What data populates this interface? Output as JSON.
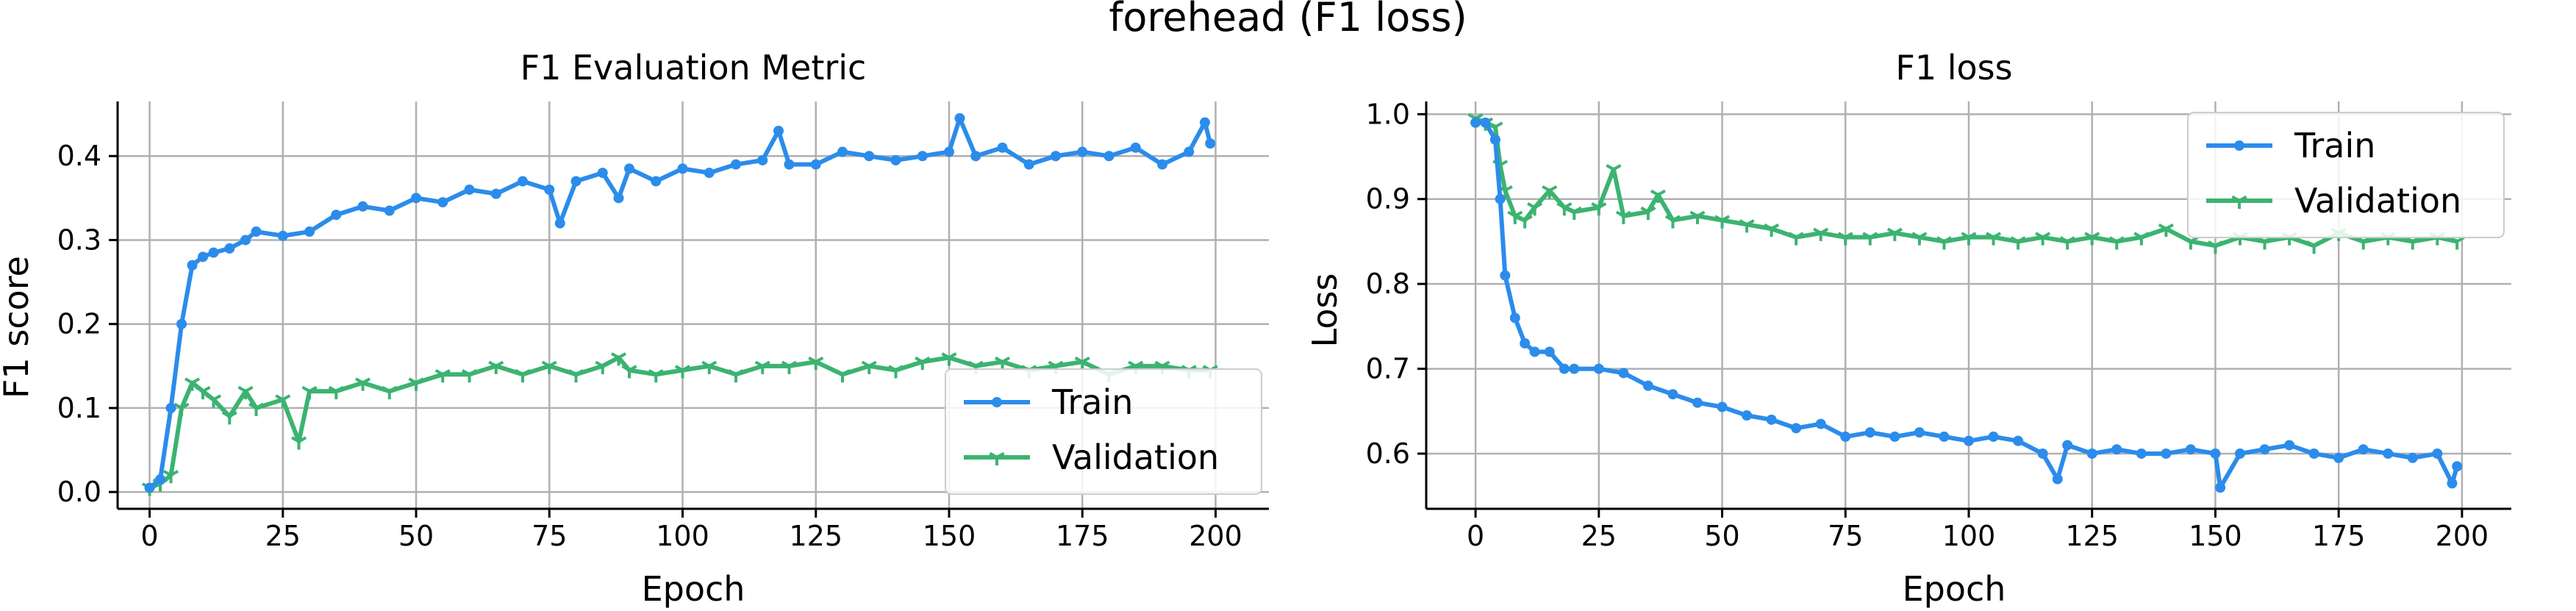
{
  "figure": {
    "suptitle": "forehead (F1 loss)"
  },
  "colors": {
    "train": "#2b8ceb",
    "validation": "#3cb371",
    "grid": "#b0b0b0"
  },
  "chart_data": [
    {
      "type": "line",
      "title": "F1 Evaluation Metric",
      "xlabel": "Epoch",
      "ylabel": "F1 score",
      "xlim": [
        -6,
        210
      ],
      "ylim": [
        -0.02,
        0.465
      ],
      "xticks": [
        0,
        25,
        50,
        75,
        100,
        125,
        150,
        175,
        200
      ],
      "yticks": [
        0.0,
        0.1,
        0.2,
        0.3,
        0.4
      ],
      "ytick_labels": [
        "0.0",
        "0.1",
        "0.2",
        "0.3",
        "0.4"
      ],
      "grid": true,
      "legend_position": "lower-right",
      "series": [
        {
          "name": "Train",
          "marker": "circle",
          "x": [
            0,
            2,
            4,
            6,
            8,
            10,
            12,
            15,
            18,
            20,
            25,
            30,
            35,
            40,
            45,
            50,
            55,
            60,
            65,
            70,
            75,
            77,
            80,
            85,
            88,
            90,
            95,
            100,
            105,
            110,
            115,
            118,
            120,
            125,
            130,
            135,
            140,
            145,
            150,
            152,
            155,
            160,
            165,
            170,
            175,
            180,
            185,
            190,
            195,
            198,
            199
          ],
          "y": [
            0.005,
            0.015,
            0.1,
            0.2,
            0.27,
            0.28,
            0.285,
            0.29,
            0.3,
            0.31,
            0.305,
            0.31,
            0.33,
            0.34,
            0.335,
            0.35,
            0.345,
            0.36,
            0.355,
            0.37,
            0.36,
            0.32,
            0.37,
            0.38,
            0.35,
            0.385,
            0.37,
            0.385,
            0.38,
            0.39,
            0.395,
            0.43,
            0.39,
            0.39,
            0.405,
            0.4,
            0.395,
            0.4,
            0.405,
            0.445,
            0.4,
            0.41,
            0.39,
            0.4,
            0.405,
            0.4,
            0.41,
            0.39,
            0.405,
            0.44,
            0.415
          ]
        },
        {
          "name": "Validation",
          "marker": "tri_down",
          "x": [
            0,
            2,
            4,
            6,
            8,
            10,
            12,
            15,
            18,
            20,
            25,
            28,
            30,
            35,
            40,
            45,
            50,
            55,
            60,
            65,
            70,
            75,
            80,
            85,
            88,
            90,
            95,
            100,
            105,
            110,
            115,
            120,
            125,
            130,
            135,
            140,
            145,
            150,
            155,
            160,
            165,
            170,
            175,
            180,
            185,
            190,
            195,
            199
          ],
          "y": [
            0.005,
            0.01,
            0.02,
            0.1,
            0.13,
            0.12,
            0.11,
            0.09,
            0.12,
            0.1,
            0.11,
            0.06,
            0.12,
            0.12,
            0.13,
            0.12,
            0.13,
            0.14,
            0.14,
            0.15,
            0.14,
            0.15,
            0.14,
            0.15,
            0.16,
            0.145,
            0.14,
            0.145,
            0.15,
            0.14,
            0.15,
            0.15,
            0.155,
            0.14,
            0.15,
            0.145,
            0.155,
            0.16,
            0.15,
            0.155,
            0.145,
            0.15,
            0.155,
            0.14,
            0.15,
            0.15,
            0.145,
            0.145
          ]
        }
      ]
    },
    {
      "type": "line",
      "title": "F1 loss",
      "xlabel": "Epoch",
      "ylabel": "Loss",
      "xlim": [
        -10,
        210
      ],
      "ylim": [
        0.535,
        1.015
      ],
      "xticks": [
        0,
        25,
        50,
        75,
        100,
        125,
        150,
        175,
        200
      ],
      "yticks": [
        0.6,
        0.7,
        0.8,
        0.9,
        1.0
      ],
      "ytick_labels": [
        "0.6",
        "0.7",
        "0.8",
        "0.9",
        "1.0"
      ],
      "grid": true,
      "legend_position": "upper-right",
      "series": [
        {
          "name": "Train",
          "marker": "circle",
          "x": [
            0,
            2,
            4,
            5,
            6,
            8,
            10,
            12,
            15,
            18,
            20,
            25,
            30,
            35,
            40,
            45,
            50,
            55,
            60,
            65,
            70,
            75,
            80,
            85,
            90,
            95,
            100,
            105,
            110,
            115,
            118,
            120,
            125,
            130,
            135,
            140,
            145,
            150,
            151,
            155,
            160,
            165,
            170,
            175,
            180,
            185,
            190,
            195,
            198,
            199
          ],
          "y": [
            0.99,
            0.99,
            0.97,
            0.9,
            0.81,
            0.76,
            0.73,
            0.72,
            0.72,
            0.7,
            0.7,
            0.7,
            0.695,
            0.68,
            0.67,
            0.66,
            0.655,
            0.645,
            0.64,
            0.63,
            0.635,
            0.62,
            0.625,
            0.62,
            0.625,
            0.62,
            0.615,
            0.62,
            0.615,
            0.6,
            0.57,
            0.61,
            0.6,
            0.605,
            0.6,
            0.6,
            0.605,
            0.6,
            0.56,
            0.6,
            0.605,
            0.61,
            0.6,
            0.595,
            0.605,
            0.6,
            0.595,
            0.6,
            0.565,
            0.585
          ]
        },
        {
          "name": "Validation",
          "marker": "tri_down",
          "x": [
            0,
            2,
            4,
            5,
            6,
            8,
            10,
            12,
            15,
            18,
            20,
            25,
            28,
            30,
            35,
            37,
            40,
            45,
            50,
            55,
            60,
            65,
            70,
            75,
            80,
            85,
            90,
            95,
            100,
            105,
            110,
            115,
            120,
            125,
            130,
            135,
            140,
            145,
            150,
            155,
            160,
            165,
            170,
            175,
            180,
            185,
            190,
            195,
            199
          ],
          "y": [
            0.995,
            0.99,
            0.985,
            0.94,
            0.91,
            0.88,
            0.875,
            0.89,
            0.91,
            0.89,
            0.885,
            0.89,
            0.935,
            0.88,
            0.885,
            0.905,
            0.875,
            0.88,
            0.875,
            0.87,
            0.865,
            0.855,
            0.86,
            0.855,
            0.855,
            0.86,
            0.855,
            0.85,
            0.855,
            0.855,
            0.85,
            0.855,
            0.85,
            0.855,
            0.85,
            0.855,
            0.865,
            0.85,
            0.845,
            0.855,
            0.85,
            0.855,
            0.845,
            0.86,
            0.85,
            0.855,
            0.85,
            0.855,
            0.85
          ]
        }
      ]
    }
  ]
}
